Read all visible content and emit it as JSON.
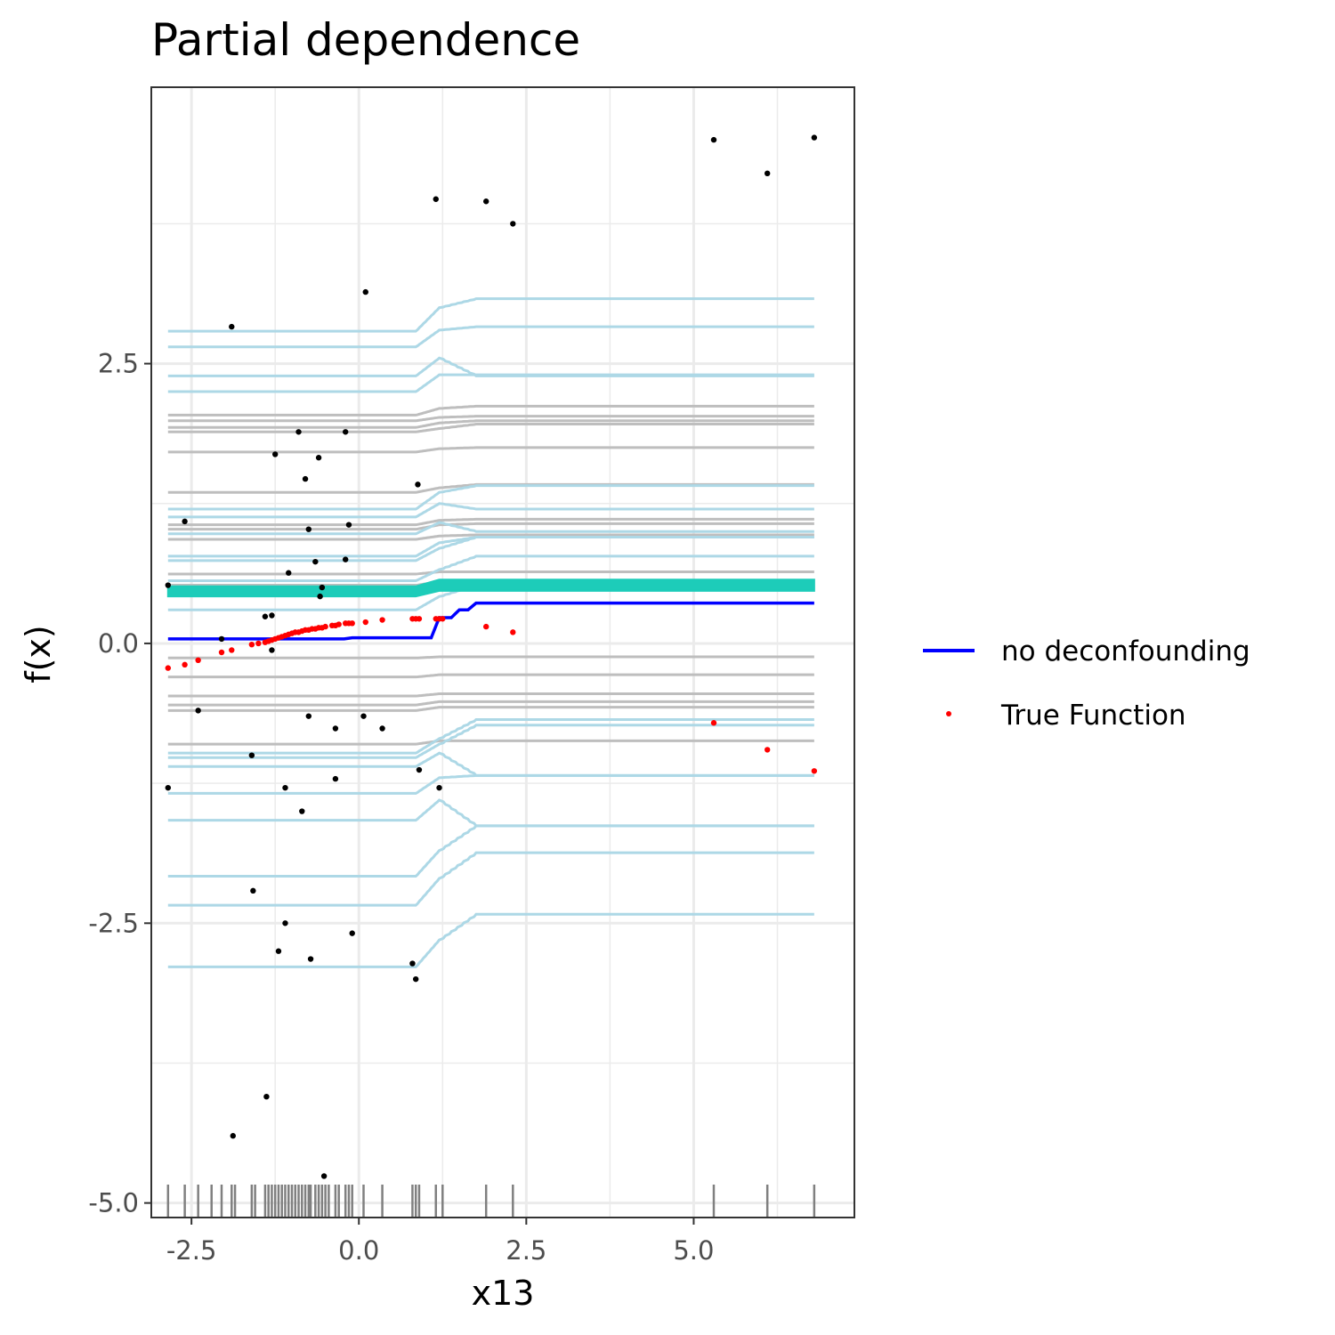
{
  "chart_data": {
    "type": "line",
    "title": "Partial dependence",
    "xlabel": "x13",
    "ylabel": "f(x)",
    "xlim": [
      -3.1,
      7.4
    ],
    "ylim": [
      -5.13,
      4.97
    ],
    "x_ticks": [
      -2.5,
      0.0,
      2.5,
      5.0
    ],
    "x_tick_labels": [
      "-2.5",
      "0.0",
      "2.5",
      "5.0"
    ],
    "y_ticks": [
      -5.0,
      -2.5,
      0.0,
      2.5
    ],
    "y_tick_labels": [
      "-5.0",
      "-2.5",
      "0.0",
      "2.5"
    ],
    "grid": true,
    "legend_position": "right",
    "legend": [
      {
        "label": "no deconfounding",
        "kind": "line",
        "color": "#0000ff"
      },
      {
        "label": "True Function",
        "kind": "point",
        "color": "#ff0000"
      }
    ],
    "colors": {
      "ice_light": "#add8e6",
      "ice_gray": "#bebebe",
      "pd_teal": "#1dccb9",
      "pd_blue": "#0000ff",
      "true_fn": "#ff0000",
      "obs": "#000000",
      "rug": "#808080"
    },
    "step_x": [
      -2.85,
      0.85,
      1.2,
      1.75,
      6.8
    ],
    "ice_curves_light": [
      [
        2.79,
        2.79,
        3.0,
        3.08,
        3.08
      ],
      [
        2.65,
        2.65,
        2.8,
        2.83,
        2.83
      ],
      [
        2.39,
        2.39,
        2.55,
        2.39,
        2.39
      ],
      [
        2.25,
        2.25,
        2.4,
        2.4,
        2.4
      ],
      [
        1.2,
        1.2,
        1.35,
        1.41,
        1.41
      ],
      [
        1.13,
        1.13,
        1.25,
        1.2,
        1.2
      ],
      [
        0.98,
        0.98,
        1.08,
        1.0,
        1.0
      ],
      [
        0.78,
        0.78,
        0.9,
        0.95,
        0.95
      ],
      [
        0.74,
        0.74,
        0.85,
        0.95,
        0.95
      ],
      [
        0.56,
        0.56,
        0.66,
        0.78,
        0.78
      ],
      [
        0.3,
        0.3,
        0.42,
        0.52,
        0.52
      ],
      [
        -0.98,
        -0.98,
        -0.85,
        -0.68,
        -0.68
      ],
      [
        -1.02,
        -1.02,
        -0.9,
        -0.73,
        -0.73
      ],
      [
        -1.1,
        -1.1,
        -0.98,
        -1.18,
        -1.18
      ],
      [
        -1.34,
        -1.34,
        -1.2,
        -1.18,
        -1.18
      ],
      [
        -1.58,
        -1.58,
        -1.4,
        -1.63,
        -1.63
      ],
      [
        -2.08,
        -2.08,
        -1.85,
        -1.63,
        -1.63
      ],
      [
        -2.34,
        -2.34,
        -2.1,
        -1.87,
        -1.87
      ],
      [
        -2.89,
        -2.89,
        -2.65,
        -2.42,
        -2.42
      ]
    ],
    "ice_curves_gray": [
      [
        2.04,
        2.04,
        2.1,
        2.12,
        2.12
      ],
      [
        1.99,
        1.99,
        2.02,
        2.03,
        2.03
      ],
      [
        1.93,
        1.93,
        1.97,
        1.99,
        1.99
      ],
      [
        1.89,
        1.89,
        1.92,
        1.96,
        1.96
      ],
      [
        1.71,
        1.71,
        1.74,
        1.75,
        1.75
      ],
      [
        1.35,
        1.35,
        1.39,
        1.42,
        1.42
      ],
      [
        1.06,
        1.06,
        1.1,
        1.11,
        1.11
      ],
      [
        1.02,
        1.02,
        1.06,
        1.07,
        1.07
      ],
      [
        0.93,
        0.93,
        0.96,
        0.97,
        0.97
      ],
      [
        0.62,
        0.62,
        0.64,
        0.64,
        0.64
      ],
      [
        0.52,
        0.52,
        0.55,
        0.55,
        0.55
      ],
      [
        -0.13,
        -0.13,
        -0.12,
        -0.12,
        -0.12
      ],
      [
        -0.3,
        -0.3,
        -0.28,
        -0.28,
        -0.28
      ],
      [
        -0.47,
        -0.47,
        -0.45,
        -0.45,
        -0.45
      ],
      [
        -0.55,
        -0.55,
        -0.52,
        -0.52,
        -0.52
      ],
      [
        -0.6,
        -0.6,
        -0.57,
        -0.57,
        -0.57
      ],
      [
        -0.9,
        -0.9,
        -0.87,
        -0.87,
        -0.87
      ]
    ],
    "pd_band": {
      "lower": [
        0.42,
        0.42,
        0.47,
        0.47,
        0.47
      ],
      "upper": [
        0.51,
        0.51,
        0.57,
        0.57,
        0.57
      ]
    },
    "no_deconfounding": {
      "x": [
        -2.85,
        -0.1,
        0.85,
        1.2,
        1.5,
        1.75,
        6.8
      ],
      "y": [
        0.04,
        0.05,
        0.05,
        0.23,
        0.3,
        0.36,
        0.36
      ]
    },
    "true_function": {
      "x": [
        -2.85,
        -2.6,
        -2.4,
        -2.05,
        -1.9,
        -1.6,
        -1.5,
        -1.4,
        -1.35,
        -1.3,
        -1.25,
        -1.2,
        -1.15,
        -1.1,
        -1.05,
        -1.0,
        -0.95,
        -0.9,
        -0.85,
        -0.8,
        -0.75,
        -0.7,
        -0.65,
        -0.6,
        -0.55,
        -0.5,
        -0.4,
        -0.35,
        -0.3,
        -0.2,
        -0.15,
        -0.1,
        0.1,
        0.35,
        0.8,
        0.85,
        0.9,
        1.15,
        1.2,
        1.25,
        1.9,
        2.3,
        5.3,
        6.1,
        6.8
      ],
      "y": [
        -0.22,
        -0.19,
        -0.15,
        -0.08,
        -0.06,
        -0.01,
        0.0,
        0.01,
        0.02,
        0.03,
        0.04,
        0.05,
        0.06,
        0.07,
        0.08,
        0.09,
        0.1,
        0.1,
        0.11,
        0.12,
        0.12,
        0.13,
        0.13,
        0.14,
        0.14,
        0.15,
        0.16,
        0.16,
        0.17,
        0.18,
        0.18,
        0.18,
        0.19,
        0.21,
        0.22,
        0.22,
        0.22,
        0.22,
        0.22,
        0.22,
        0.15,
        0.1,
        -0.71,
        -0.95,
        -1.14
      ]
    },
    "observations": [
      [
        -2.85,
        0.52
      ],
      [
        -2.6,
        1.09
      ],
      [
        -2.4,
        -0.6
      ],
      [
        -2.05,
        0.04
      ],
      [
        -1.9,
        2.83
      ],
      [
        -1.88,
        -4.4
      ],
      [
        -1.6,
        -1.0
      ],
      [
        -1.58,
        -2.21
      ],
      [
        -1.4,
        0.24
      ],
      [
        -1.38,
        -4.05
      ],
      [
        -1.3,
        0.25
      ],
      [
        -1.3,
        -0.06
      ],
      [
        -1.25,
        1.69
      ],
      [
        -1.2,
        -2.75
      ],
      [
        -1.1,
        -1.29
      ],
      [
        -1.1,
        -2.5
      ],
      [
        -1.05,
        0.63
      ],
      [
        -0.9,
        1.89
      ],
      [
        -0.85,
        -1.5
      ],
      [
        -0.8,
        1.47
      ],
      [
        -0.75,
        1.02
      ],
      [
        -0.75,
        -0.65
      ],
      [
        -0.72,
        -2.82
      ],
      [
        -0.65,
        0.73
      ],
      [
        -0.6,
        1.66
      ],
      [
        -0.58,
        0.42
      ],
      [
        -0.55,
        0.5
      ],
      [
        -0.52,
        -4.76
      ],
      [
        -0.35,
        -0.76
      ],
      [
        -0.35,
        -1.21
      ],
      [
        -0.2,
        1.89
      ],
      [
        -0.2,
        0.75
      ],
      [
        -0.15,
        1.06
      ],
      [
        -0.1,
        -2.59
      ],
      [
        0.07,
        -0.65
      ],
      [
        0.1,
        3.14
      ],
      [
        0.35,
        -0.76
      ],
      [
        0.8,
        -2.86
      ],
      [
        0.85,
        -3.0
      ],
      [
        0.88,
        1.42
      ],
      [
        0.9,
        -1.13
      ],
      [
        1.15,
        3.97
      ],
      [
        1.2,
        -1.29
      ],
      [
        1.9,
        3.95
      ],
      [
        2.3,
        3.75
      ],
      [
        5.3,
        4.5
      ],
      [
        6.1,
        4.2
      ],
      [
        6.8,
        4.52
      ],
      [
        -2.85,
        -1.29
      ]
    ],
    "rug_x": [
      -2.85,
      -2.6,
      -2.4,
      -2.2,
      -2.05,
      -1.9,
      -1.85,
      -1.6,
      -1.55,
      -1.4,
      -1.35,
      -1.3,
      -1.25,
      -1.2,
      -1.15,
      -1.1,
      -1.05,
      -1.0,
      -0.95,
      -0.9,
      -0.85,
      -0.8,
      -0.75,
      -0.72,
      -0.65,
      -0.6,
      -0.55,
      -0.5,
      -0.45,
      -0.35,
      -0.3,
      -0.2,
      -0.15,
      -0.1,
      0.07,
      0.35,
      0.8,
      0.85,
      0.9,
      1.15,
      1.25,
      1.9,
      2.3,
      5.3,
      6.1,
      6.8
    ]
  }
}
